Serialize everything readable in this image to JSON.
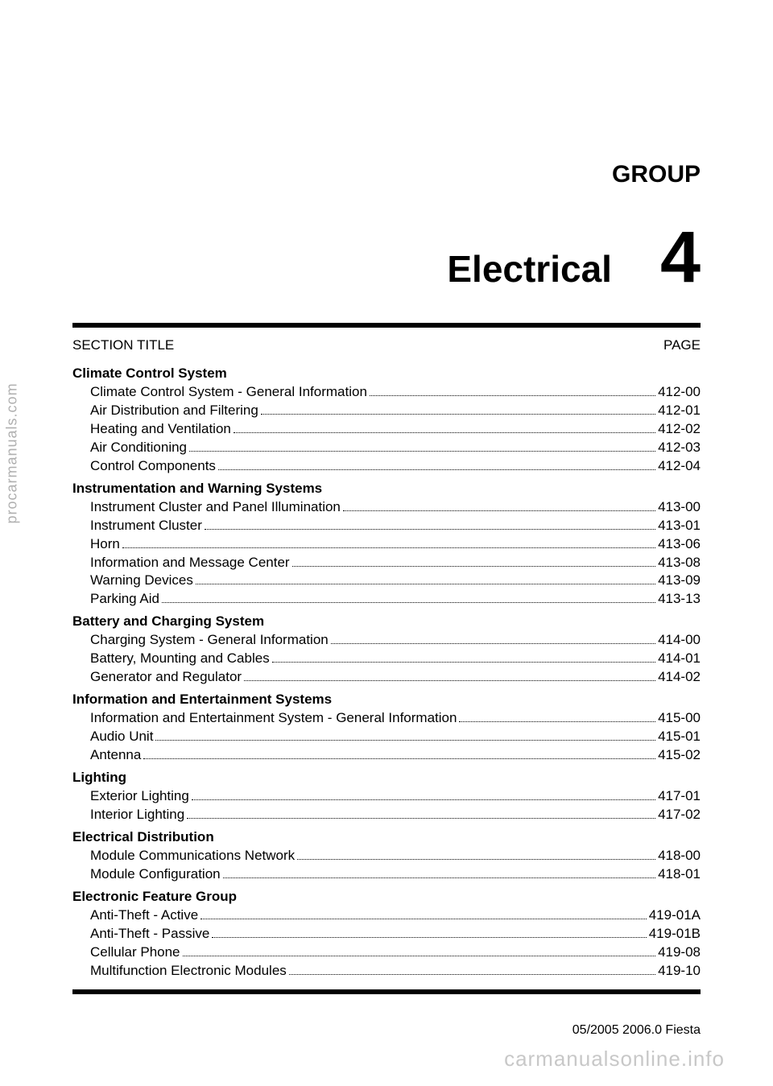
{
  "sidebar_text": "procarmanuals.com",
  "group_label": "GROUP",
  "main_title": "Electrical",
  "group_number": "4",
  "header": {
    "left": "SECTION TITLE",
    "right": "PAGE"
  },
  "sections": [
    {
      "heading": "Climate Control System",
      "entries": [
        {
          "label": "Climate Control System - General Information",
          "page": "412-00"
        },
        {
          "label": "Air Distribution and Filtering",
          "page": "412-01"
        },
        {
          "label": "Heating and Ventilation",
          "page": "412-02"
        },
        {
          "label": "Air Conditioning",
          "page": "412-03"
        },
        {
          "label": "Control Components",
          "page": "412-04"
        }
      ]
    },
    {
      "heading": "Instrumentation and Warning Systems",
      "entries": [
        {
          "label": "Instrument Cluster and Panel Illumination",
          "page": "413-00"
        },
        {
          "label": "Instrument Cluster",
          "page": "413-01"
        },
        {
          "label": "Horn",
          "page": "413-06"
        },
        {
          "label": "Information and Message Center",
          "page": "413-08"
        },
        {
          "label": "Warning Devices",
          "page": "413-09"
        },
        {
          "label": "Parking Aid",
          "page": "413-13"
        }
      ]
    },
    {
      "heading": "Battery and Charging System",
      "entries": [
        {
          "label": "Charging System - General Information",
          "page": "414-00"
        },
        {
          "label": "Battery, Mounting and Cables",
          "page": "414-01"
        },
        {
          "label": "Generator and Regulator",
          "page": "414-02"
        }
      ]
    },
    {
      "heading": "Information and Entertainment Systems",
      "entries": [
        {
          "label": "Information and Entertainment System - General Information",
          "page": "415-00"
        },
        {
          "label": "Audio Unit",
          "page": "415-01"
        },
        {
          "label": "Antenna",
          "page": "415-02"
        }
      ]
    },
    {
      "heading": "Lighting",
      "entries": [
        {
          "label": "Exterior Lighting",
          "page": "417-01"
        },
        {
          "label": "Interior Lighting",
          "page": "417-02"
        }
      ]
    },
    {
      "heading": "Electrical Distribution",
      "entries": [
        {
          "label": "Module Communications Network",
          "page": "418-00"
        },
        {
          "label": "Module Configuration",
          "page": "418-01"
        }
      ]
    },
    {
      "heading": "Electronic Feature Group",
      "entries": [
        {
          "label": "Anti-Theft - Active",
          "page": "419-01A"
        },
        {
          "label": "Anti-Theft - Passive",
          "page": "419-01B"
        },
        {
          "label": "Cellular Phone",
          "page": "419-08"
        },
        {
          "label": "Multifunction Electronic Modules",
          "page": "419-10"
        }
      ]
    }
  ],
  "footer": "05/2005 2006.0 Fiesta",
  "watermark": "carmanualsonline.info"
}
